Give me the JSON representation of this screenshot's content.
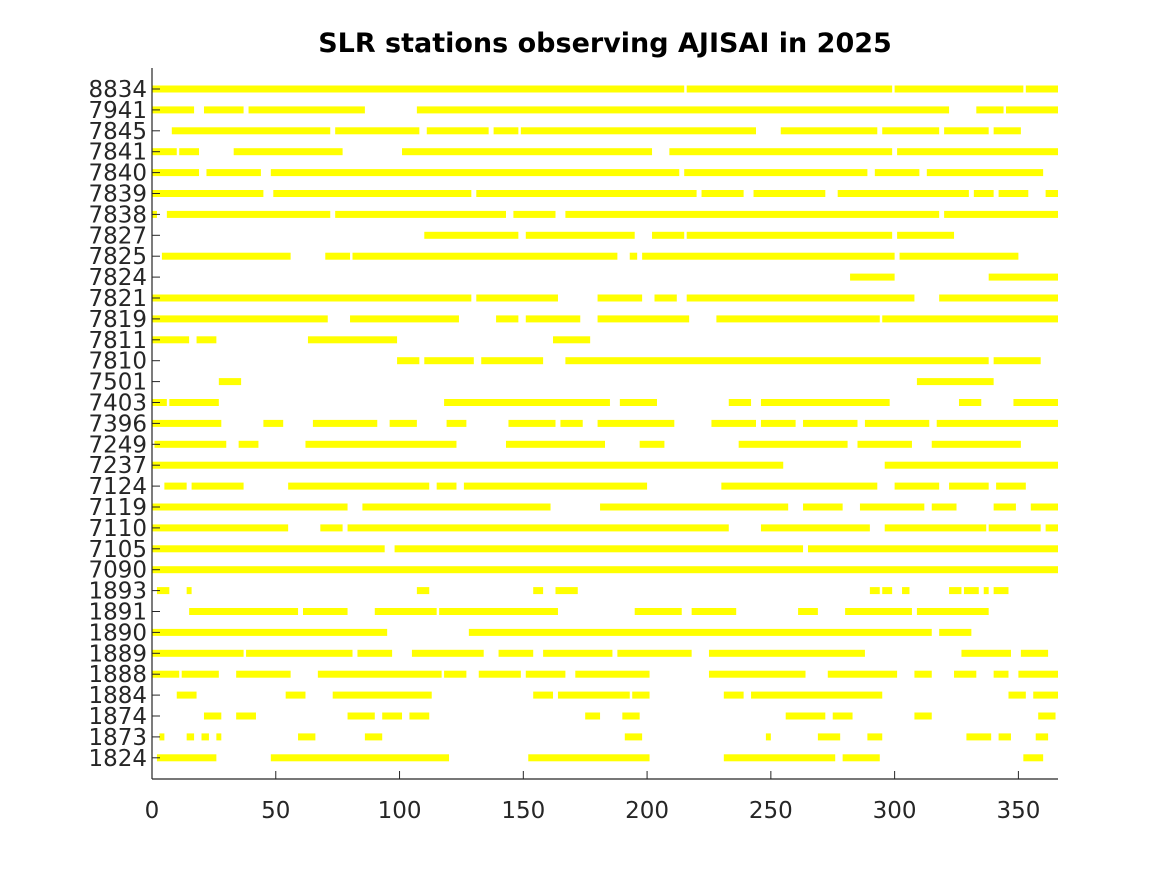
{
  "chart_data": {
    "type": "timeline",
    "title": "SLR stations observing AJISAI in 2025",
    "xlabel": "",
    "ylabel": "",
    "xlim": [
      0,
      366
    ],
    "xticks": [
      0,
      50,
      100,
      150,
      200,
      250,
      300,
      350
    ],
    "bar_color": "#ffff00",
    "grid": false,
    "stations": [
      {
        "name": "8834",
        "segments": [
          [
            0,
            215
          ],
          [
            216,
            299
          ],
          [
            300,
            352
          ],
          [
            353,
            366
          ]
        ]
      },
      {
        "name": "7941",
        "segments": [
          [
            0,
            17
          ],
          [
            21,
            37
          ],
          [
            39,
            86
          ],
          [
            107,
            322
          ],
          [
            333,
            344
          ],
          [
            345,
            366
          ]
        ]
      },
      {
        "name": "7845",
        "segments": [
          [
            8,
            72
          ],
          [
            74,
            108
          ],
          [
            111,
            136
          ],
          [
            138,
            148
          ],
          [
            149,
            244
          ],
          [
            254,
            293
          ],
          [
            295,
            318
          ],
          [
            320,
            338
          ],
          [
            340,
            351
          ]
        ]
      },
      {
        "name": "7841",
        "segments": [
          [
            0,
            10
          ],
          [
            11,
            19
          ],
          [
            33,
            77
          ],
          [
            101,
            202
          ],
          [
            209,
            299
          ],
          [
            301,
            366
          ]
        ]
      },
      {
        "name": "7840",
        "segments": [
          [
            0,
            19
          ],
          [
            22,
            44
          ],
          [
            48,
            213
          ],
          [
            215,
            289
          ],
          [
            292,
            310
          ],
          [
            313,
            360
          ]
        ]
      },
      {
        "name": "7839",
        "segments": [
          [
            0,
            45
          ],
          [
            49,
            129
          ],
          [
            131,
            220
          ],
          [
            222,
            239
          ],
          [
            243,
            272
          ],
          [
            277,
            330
          ],
          [
            332,
            340
          ],
          [
            342,
            354
          ],
          [
            361,
            366
          ]
        ]
      },
      {
        "name": "7838",
        "segments": [
          [
            0,
            2
          ],
          [
            6,
            72
          ],
          [
            74,
            143
          ],
          [
            146,
            163
          ],
          [
            167,
            318
          ],
          [
            320,
            366
          ]
        ]
      },
      {
        "name": "7827",
        "segments": [
          [
            110,
            148
          ],
          [
            151,
            195
          ],
          [
            202,
            215
          ],
          [
            216,
            299
          ],
          [
            301,
            324
          ]
        ]
      },
      {
        "name": "7825",
        "segments": [
          [
            4,
            56
          ],
          [
            70,
            80
          ],
          [
            81,
            188
          ],
          [
            193,
            196
          ],
          [
            198,
            300
          ],
          [
            302,
            350
          ]
        ]
      },
      {
        "name": "7824",
        "segments": [
          [
            282,
            300
          ],
          [
            338,
            366
          ]
        ]
      },
      {
        "name": "7821",
        "segments": [
          [
            0,
            129
          ],
          [
            131,
            164
          ],
          [
            180,
            198
          ],
          [
            203,
            212
          ],
          [
            216,
            308
          ],
          [
            318,
            366
          ]
        ]
      },
      {
        "name": "7819",
        "segments": [
          [
            0,
            71
          ],
          [
            80,
            124
          ],
          [
            139,
            148
          ],
          [
            151,
            173
          ],
          [
            180,
            217
          ],
          [
            228,
            294
          ],
          [
            295,
            366
          ]
        ]
      },
      {
        "name": "7811",
        "segments": [
          [
            0,
            15
          ],
          [
            18,
            26
          ],
          [
            63,
            99
          ],
          [
            162,
            177
          ]
        ]
      },
      {
        "name": "7810",
        "segments": [
          [
            99,
            108
          ],
          [
            110,
            130
          ],
          [
            133,
            158
          ],
          [
            167,
            338
          ],
          [
            340,
            359
          ]
        ]
      },
      {
        "name": "7501",
        "segments": [
          [
            27,
            36
          ],
          [
            309,
            340
          ]
        ]
      },
      {
        "name": "7403",
        "segments": [
          [
            0,
            6
          ],
          [
            7,
            27
          ],
          [
            118,
            185
          ],
          [
            189,
            204
          ],
          [
            233,
            242
          ],
          [
            246,
            298
          ],
          [
            326,
            335
          ],
          [
            348,
            366
          ]
        ]
      },
      {
        "name": "7396",
        "segments": [
          [
            0,
            28
          ],
          [
            45,
            53
          ],
          [
            65,
            91
          ],
          [
            96,
            107
          ],
          [
            119,
            127
          ],
          [
            144,
            163
          ],
          [
            165,
            174
          ],
          [
            180,
            211
          ],
          [
            226,
            244
          ],
          [
            246,
            260
          ],
          [
            263,
            285
          ],
          [
            288,
            314
          ],
          [
            317,
            366
          ]
        ]
      },
      {
        "name": "7249",
        "segments": [
          [
            1,
            30
          ],
          [
            35,
            43
          ],
          [
            62,
            123
          ],
          [
            143,
            183
          ],
          [
            197,
            207
          ],
          [
            237,
            281
          ],
          [
            285,
            307
          ],
          [
            315,
            351
          ]
        ]
      },
      {
        "name": "7237",
        "segments": [
          [
            0,
            255
          ],
          [
            296,
            366
          ]
        ]
      },
      {
        "name": "7124",
        "segments": [
          [
            5,
            14
          ],
          [
            16,
            37
          ],
          [
            55,
            112
          ],
          [
            115,
            123
          ],
          [
            126,
            200
          ],
          [
            230,
            293
          ],
          [
            300,
            318
          ],
          [
            322,
            338
          ],
          [
            341,
            353
          ]
        ]
      },
      {
        "name": "7119",
        "segments": [
          [
            0,
            79
          ],
          [
            85,
            161
          ],
          [
            181,
            257
          ],
          [
            263,
            279
          ],
          [
            286,
            312
          ],
          [
            315,
            325
          ],
          [
            340,
            349
          ],
          [
            355,
            366
          ]
        ]
      },
      {
        "name": "7110",
        "segments": [
          [
            0,
            55
          ],
          [
            68,
            77
          ],
          [
            79,
            233
          ],
          [
            246,
            290
          ],
          [
            296,
            337
          ],
          [
            338,
            359
          ],
          [
            361,
            366
          ]
        ]
      },
      {
        "name": "7105",
        "segments": [
          [
            0,
            94
          ],
          [
            98,
            263
          ],
          [
            265,
            366
          ]
        ]
      },
      {
        "name": "7090",
        "segments": [
          [
            0,
            366
          ]
        ]
      },
      {
        "name": "1893",
        "segments": [
          [
            2,
            7
          ],
          [
            14,
            16
          ],
          [
            107,
            112
          ],
          [
            154,
            158
          ],
          [
            163,
            172
          ],
          [
            290,
            294
          ],
          [
            295,
            299
          ],
          [
            303,
            306
          ],
          [
            322,
            327
          ],
          [
            328,
            334
          ],
          [
            336,
            338
          ],
          [
            340,
            346
          ]
        ]
      },
      {
        "name": "1891",
        "segments": [
          [
            15,
            59
          ],
          [
            61,
            79
          ],
          [
            90,
            115
          ],
          [
            116,
            164
          ],
          [
            195,
            214
          ],
          [
            218,
            236
          ],
          [
            261,
            269
          ],
          [
            280,
            307
          ],
          [
            309,
            338
          ]
        ]
      },
      {
        "name": "1890",
        "segments": [
          [
            0,
            95
          ],
          [
            128,
            315
          ],
          [
            318,
            331
          ]
        ]
      },
      {
        "name": "1889",
        "segments": [
          [
            0,
            37
          ],
          [
            38,
            81
          ],
          [
            83,
            97
          ],
          [
            105,
            134
          ],
          [
            140,
            154
          ],
          [
            158,
            186
          ],
          [
            188,
            218
          ],
          [
            225,
            288
          ],
          [
            327,
            347
          ],
          [
            351,
            362
          ]
        ]
      },
      {
        "name": "1888",
        "segments": [
          [
            0,
            11
          ],
          [
            12,
            27
          ],
          [
            34,
            56
          ],
          [
            67,
            117
          ],
          [
            118,
            127
          ],
          [
            132,
            149
          ],
          [
            151,
            167
          ],
          [
            171,
            201
          ],
          [
            225,
            264
          ],
          [
            273,
            301
          ],
          [
            308,
            315
          ],
          [
            324,
            333
          ],
          [
            340,
            346
          ],
          [
            350,
            366
          ]
        ]
      },
      {
        "name": "1884",
        "segments": [
          [
            10,
            18
          ],
          [
            54,
            62
          ],
          [
            73,
            113
          ],
          [
            154,
            162
          ],
          [
            164,
            193
          ],
          [
            194,
            201
          ],
          [
            231,
            239
          ],
          [
            242,
            295
          ],
          [
            346,
            353
          ],
          [
            356,
            366
          ]
        ]
      },
      {
        "name": "1874",
        "segments": [
          [
            21,
            28
          ],
          [
            34,
            42
          ],
          [
            79,
            90
          ],
          [
            93,
            101
          ],
          [
            104,
            112
          ],
          [
            175,
            181
          ],
          [
            190,
            197
          ],
          [
            256,
            272
          ],
          [
            275,
            283
          ],
          [
            308,
            315
          ],
          [
            358,
            365
          ]
        ]
      },
      {
        "name": "1873",
        "segments": [
          [
            3,
            5
          ],
          [
            14,
            17
          ],
          [
            20,
            23
          ],
          [
            26,
            28
          ],
          [
            59,
            66
          ],
          [
            86,
            93
          ],
          [
            191,
            198
          ],
          [
            248,
            250
          ],
          [
            269,
            278
          ],
          [
            289,
            295
          ],
          [
            329,
            339
          ],
          [
            342,
            347
          ],
          [
            357,
            362
          ]
        ]
      },
      {
        "name": "1824",
        "segments": [
          [
            2,
            26
          ],
          [
            48,
            120
          ],
          [
            152,
            201
          ],
          [
            231,
            276
          ],
          [
            279,
            294
          ],
          [
            352,
            360
          ]
        ]
      }
    ]
  }
}
